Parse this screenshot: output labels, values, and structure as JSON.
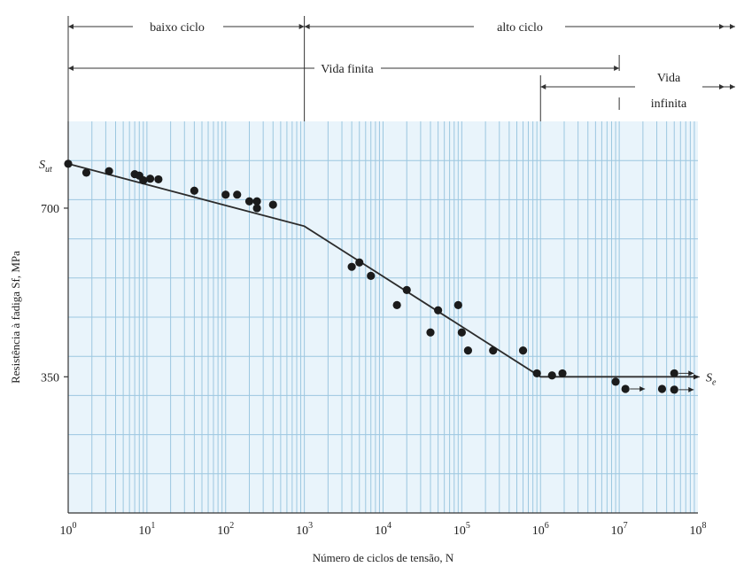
{
  "chart_data": {
    "type": "scatter",
    "title": "",
    "xlabel": "Número de ciclos de tensão, N",
    "ylabel": "Resistência à fadiga Sf, MPa",
    "x_scale": "log",
    "x_ticks": [
      1,
      10,
      100,
      1000,
      10000,
      100000,
      1000000,
      10000000,
      100000000
    ],
    "x_tick_labels": [
      "10^0",
      "10^1",
      "10^2",
      "10^3",
      "10^4",
      "10^5",
      "10^6",
      "10^7",
      "10^8"
    ],
    "xlim": [
      1,
      100000000
    ],
    "ylim": [
      200,
      1000
    ],
    "y_scale": "log",
    "y_ticks": [
      350,
      700
    ],
    "y_tick_labels": [
      "350",
      "700"
    ],
    "labels": {
      "sut": "Sut",
      "se": "Se"
    },
    "regions": {
      "low_cycle": "baixo ciclo",
      "high_cycle": "alto ciclo",
      "finite_life": "Vida finita",
      "infinite_life_1": "Vida",
      "infinite_life_2": "infinita"
    },
    "grid": true,
    "sn_curve": [
      {
        "x": 1,
        "y": 840
      },
      {
        "x": 1000,
        "y": 650
      },
      {
        "x": 1000000,
        "y": 350
      },
      {
        "x": 100000000,
        "y": 350
      }
    ],
    "points": [
      {
        "x": 1,
        "y": 840
      },
      {
        "x": 1.7,
        "y": 810
      },
      {
        "x": 3.3,
        "y": 815
      },
      {
        "x": 7,
        "y": 805
      },
      {
        "x": 8,
        "y": 800
      },
      {
        "x": 9,
        "y": 785
      },
      {
        "x": 11,
        "y": 790
      },
      {
        "x": 14,
        "y": 788
      },
      {
        "x": 40,
        "y": 752
      },
      {
        "x": 100,
        "y": 740
      },
      {
        "x": 140,
        "y": 740
      },
      {
        "x": 200,
        "y": 720
      },
      {
        "x": 250,
        "y": 720
      },
      {
        "x": 250,
        "y": 700
      },
      {
        "x": 400,
        "y": 710
      },
      {
        "x": 4000,
        "y": 550
      },
      {
        "x": 5000,
        "y": 560
      },
      {
        "x": 7000,
        "y": 530
      },
      {
        "x": 15000,
        "y": 470
      },
      {
        "x": 20000,
        "y": 500
      },
      {
        "x": 40000,
        "y": 420
      },
      {
        "x": 50000,
        "y": 460
      },
      {
        "x": 90000,
        "y": 470
      },
      {
        "x": 100000,
        "y": 420
      },
      {
        "x": 120000,
        "y": 390
      },
      {
        "x": 250000,
        "y": 390
      },
      {
        "x": 600000,
        "y": 390
      },
      {
        "x": 900000,
        "y": 355
      },
      {
        "x": 1400000,
        "y": 352
      },
      {
        "x": 1900000,
        "y": 355
      },
      {
        "x": 9000000,
        "y": 343
      },
      {
        "x": 12000000,
        "y": 333
      },
      {
        "x": 35000000,
        "y": 333
      },
      {
        "x": 50000000,
        "y": 355
      },
      {
        "x": 50000000,
        "y": 332
      }
    ],
    "runouts": [
      {
        "x": 12000000,
        "y": 333
      },
      {
        "x": 50000000,
        "y": 332
      },
      {
        "x": 50000000,
        "y": 355
      }
    ]
  }
}
